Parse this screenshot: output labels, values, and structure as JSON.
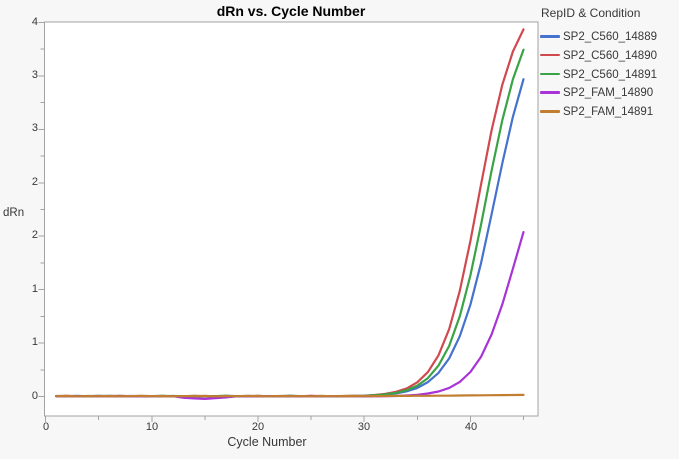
{
  "colors": {
    "background": "#F7F7F7",
    "plot_background": "#FFFFFF",
    "frame": "#A3A3A3",
    "tick": "#A3A3A3",
    "text": "#383838",
    "title_text": "#000000"
  },
  "chart_data": {
    "type": "line",
    "title": "dRn vs. Cycle Number",
    "xlabel": "Cycle Number",
    "ylabel": "dRn",
    "grid": false,
    "legend_title": "RepID & Condition",
    "legend_position": "right",
    "x_axis": {
      "min": 0,
      "max": 46.4,
      "major_ticks": [
        0,
        10,
        20,
        30,
        40
      ],
      "tick_labels": [
        "0",
        "10",
        "20",
        "30",
        "40"
      ],
      "minor_ticks": [
        5,
        15,
        25,
        35,
        45
      ]
    },
    "y_axis": {
      "min": -0.18,
      "max": 3.51,
      "major_ticks": [
        0,
        0.5,
        1,
        1.5,
        2,
        2.5,
        3,
        3.5
      ],
      "tick_labels": [
        "0",
        "1",
        "1",
        "2",
        "2",
        "3",
        "3",
        "4"
      ],
      "minor_ticks": [
        0.25,
        0.75,
        1.25,
        1.75,
        2.25,
        2.75,
        3.25
      ]
    },
    "cycles": [
      1,
      2,
      3,
      4,
      5,
      6,
      7,
      8,
      9,
      10,
      11,
      12,
      13,
      14,
      15,
      16,
      17,
      18,
      19,
      20,
      21,
      22,
      23,
      24,
      25,
      26,
      27,
      28,
      29,
      30,
      31,
      32,
      33,
      34,
      35,
      36,
      37,
      38,
      39,
      40,
      41,
      42,
      43,
      44,
      45
    ],
    "series": [
      {
        "name": "SP2_C560_14889",
        "color": "#4472CC",
        "values": [
          0.005,
          0.003,
          0.006,
          0.002,
          0.004,
          0.006,
          0.003,
          0.005,
          0.002,
          0.004,
          0.005,
          0.003,
          0.004,
          0.002,
          0.005,
          0.003,
          0.006,
          0.004,
          0.002,
          0.005,
          0.003,
          0.004,
          0.006,
          0.003,
          0.005,
          0.002,
          0.004,
          0.003,
          0.005,
          0.006,
          0.01,
          0.017,
          0.029,
          0.049,
          0.081,
          0.135,
          0.221,
          0.357,
          0.564,
          0.859,
          1.247,
          1.706,
          2.183,
          2.618,
          2.97
        ]
      },
      {
        "name": "SP2_C560_14890",
        "color": "#D0494F",
        "values": [
          0.004,
          0.006,
          0.003,
          0.005,
          0.002,
          0.004,
          0.006,
          0.003,
          0.005,
          0.004,
          0.002,
          0.005,
          0.003,
          0.006,
          0.004,
          0.002,
          0.005,
          0.003,
          0.004,
          0.006,
          0.002,
          0.004,
          0.005,
          0.003,
          0.006,
          0.004,
          0.002,
          0.005,
          0.006,
          0.008,
          0.014,
          0.025,
          0.044,
          0.076,
          0.133,
          0.228,
          0.386,
          0.632,
          0.989,
          1.455,
          1.982,
          2.492,
          2.917,
          3.229,
          3.436
        ]
      },
      {
        "name": "SP2_C560_14891",
        "color": "#3AA345",
        "values": [
          0.003,
          0.005,
          0.002,
          0.004,
          0.006,
          0.003,
          0.005,
          0.002,
          0.004,
          0.003,
          0.006,
          0.004,
          0.002,
          0.005,
          0.003,
          0.004,
          0.006,
          0.002,
          0.005,
          0.003,
          0.004,
          0.002,
          0.006,
          0.004,
          0.003,
          0.005,
          0.002,
          0.004,
          0.005,
          0.007,
          0.012,
          0.02,
          0.034,
          0.059,
          0.101,
          0.172,
          0.289,
          0.474,
          0.751,
          1.133,
          1.606,
          2.114,
          2.586,
          2.969,
          3.246
        ]
      },
      {
        "name": "SP2_FAM_14890",
        "color": "#A833D6",
        "values": [
          0.002,
          0.004,
          0.001,
          0.003,
          0.005,
          0.002,
          0.004,
          0.001,
          0.003,
          0.002,
          0.004,
          0.003,
          -0.012,
          -0.018,
          -0.022,
          -0.016,
          -0.008,
          0.002,
          0.003,
          0.001,
          0.004,
          0.002,
          0.003,
          0.001,
          0.004,
          0.002,
          0.003,
          0.004,
          0.002,
          0.001,
          0.002,
          0.003,
          0.005,
          0.009,
          0.016,
          0.028,
          0.047,
          0.081,
          0.137,
          0.229,
          0.371,
          0.581,
          0.862,
          1.196,
          1.539
        ]
      },
      {
        "name": "SP2_FAM_14891",
        "color": "#C17E31",
        "values": [
          0.003,
          0.005,
          0.002,
          0.004,
          0.003,
          0.005,
          0.002,
          0.004,
          0.006,
          0.003,
          0.005,
          0.002,
          0.004,
          0.003,
          0.005,
          0.002,
          0.004,
          0.003,
          0.006,
          0.004,
          0.002,
          0.005,
          0.003,
          0.004,
          0.002,
          0.005,
          0.003,
          0.004,
          0.005,
          0.003,
          0.004,
          0.005,
          0.006,
          0.006,
          0.007,
          0.007,
          0.008,
          0.008,
          0.009,
          0.01,
          0.011,
          0.012,
          0.013,
          0.014,
          0.015
        ]
      }
    ]
  }
}
